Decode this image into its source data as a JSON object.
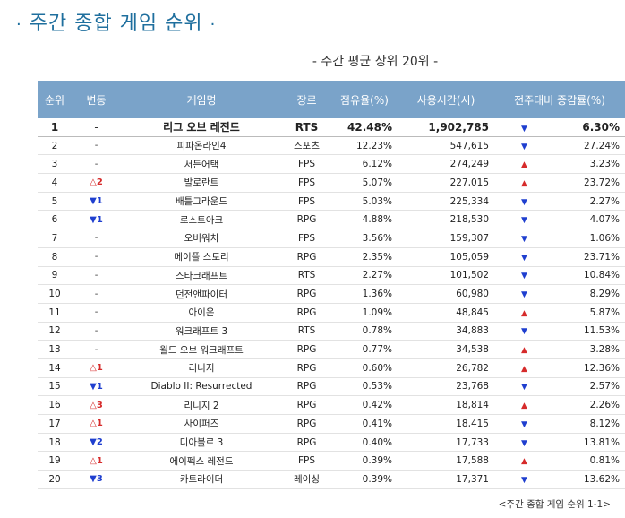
{
  "title": "주간 종합 게임 순위",
  "title_bullet": "·",
  "subtitle": "- 주간 평균 상위 20위 -",
  "headers": [
    "순위",
    "변동",
    "게임명",
    "장르",
    "점유율(%)",
    "사용시간(시)",
    "전주대비 증감률(%)"
  ],
  "rows": [
    {
      "rank": "1",
      "change": "-",
      "change_dir": "same",
      "game": "리그 오브 레전드",
      "genre": "RTS",
      "share": "42.48%",
      "hours": "1,902,785",
      "trend": "down",
      "rate": "6.30%"
    },
    {
      "rank": "2",
      "change": "-",
      "change_dir": "same",
      "game": "피파온라인4",
      "genre": "스포츠",
      "share": "12.23%",
      "hours": "547,615",
      "trend": "down",
      "rate": "27.24%"
    },
    {
      "rank": "3",
      "change": "-",
      "change_dir": "same",
      "game": "서든어택",
      "genre": "FPS",
      "share": "6.12%",
      "hours": "274,249",
      "trend": "up",
      "rate": "3.23%"
    },
    {
      "rank": "4",
      "change": "2",
      "change_dir": "up",
      "game": "발로란트",
      "genre": "FPS",
      "share": "5.07%",
      "hours": "227,015",
      "trend": "up",
      "rate": "23.72%"
    },
    {
      "rank": "5",
      "change": "1",
      "change_dir": "down",
      "game": "배틀그라운드",
      "genre": "FPS",
      "share": "5.03%",
      "hours": "225,334",
      "trend": "down",
      "rate": "2.27%"
    },
    {
      "rank": "6",
      "change": "1",
      "change_dir": "down",
      "game": "로스트아크",
      "genre": "RPG",
      "share": "4.88%",
      "hours": "218,530",
      "trend": "down",
      "rate": "4.07%"
    },
    {
      "rank": "7",
      "change": "-",
      "change_dir": "same",
      "game": "오버워치",
      "genre": "FPS",
      "share": "3.56%",
      "hours": "159,307",
      "trend": "down",
      "rate": "1.06%"
    },
    {
      "rank": "8",
      "change": "-",
      "change_dir": "same",
      "game": "메이플 스토리",
      "genre": "RPG",
      "share": "2.35%",
      "hours": "105,059",
      "trend": "down",
      "rate": "23.71%"
    },
    {
      "rank": "9",
      "change": "-",
      "change_dir": "same",
      "game": "스타크래프트",
      "genre": "RTS",
      "share": "2.27%",
      "hours": "101,502",
      "trend": "down",
      "rate": "10.84%"
    },
    {
      "rank": "10",
      "change": "-",
      "change_dir": "same",
      "game": "던전앤파이터",
      "genre": "RPG",
      "share": "1.36%",
      "hours": "60,980",
      "trend": "down",
      "rate": "8.29%"
    },
    {
      "rank": "11",
      "change": "-",
      "change_dir": "same",
      "game": "아이온",
      "genre": "RPG",
      "share": "1.09%",
      "hours": "48,845",
      "trend": "up",
      "rate": "5.87%"
    },
    {
      "rank": "12",
      "change": "-",
      "change_dir": "same",
      "game": "워크래프트 3",
      "genre": "RTS",
      "share": "0.78%",
      "hours": "34,883",
      "trend": "down",
      "rate": "11.53%"
    },
    {
      "rank": "13",
      "change": "-",
      "change_dir": "same",
      "game": "월드 오브 워크래프트",
      "genre": "RPG",
      "share": "0.77%",
      "hours": "34,538",
      "trend": "up",
      "rate": "3.28%"
    },
    {
      "rank": "14",
      "change": "1",
      "change_dir": "up",
      "game": "리니지",
      "genre": "RPG",
      "share": "0.60%",
      "hours": "26,782",
      "trend": "up",
      "rate": "12.36%"
    },
    {
      "rank": "15",
      "change": "1",
      "change_dir": "down",
      "game": "Diablo II: Resurrected",
      "genre": "RPG",
      "share": "0.53%",
      "hours": "23,768",
      "trend": "down",
      "rate": "2.57%"
    },
    {
      "rank": "16",
      "change": "3",
      "change_dir": "up",
      "game": "리니지 2",
      "genre": "RPG",
      "share": "0.42%",
      "hours": "18,814",
      "trend": "up",
      "rate": "2.26%"
    },
    {
      "rank": "17",
      "change": "1",
      "change_dir": "up",
      "game": "사이퍼즈",
      "genre": "RPG",
      "share": "0.41%",
      "hours": "18,415",
      "trend": "down",
      "rate": "8.12%"
    },
    {
      "rank": "18",
      "change": "2",
      "change_dir": "down",
      "game": "디아블로 3",
      "genre": "RPG",
      "share": "0.40%",
      "hours": "17,733",
      "trend": "down",
      "rate": "13.81%"
    },
    {
      "rank": "19",
      "change": "1",
      "change_dir": "up",
      "game": "에이펙스 레전드",
      "genre": "FPS",
      "share": "0.39%",
      "hours": "17,588",
      "trend": "up",
      "rate": "0.81%"
    },
    {
      "rank": "20",
      "change": "3",
      "change_dir": "down",
      "game": "카트라이더",
      "genre": "레이싱",
      "share": "0.39%",
      "hours": "17,371",
      "trend": "down",
      "rate": "13.62%"
    }
  ],
  "footer": "<주간 종합 게임 순위 1-1>",
  "colors": {
    "header_bg": "#7aa3c9",
    "title": "#1f6f9e",
    "up": "#d62b2b",
    "down": "#1f3fcf"
  }
}
